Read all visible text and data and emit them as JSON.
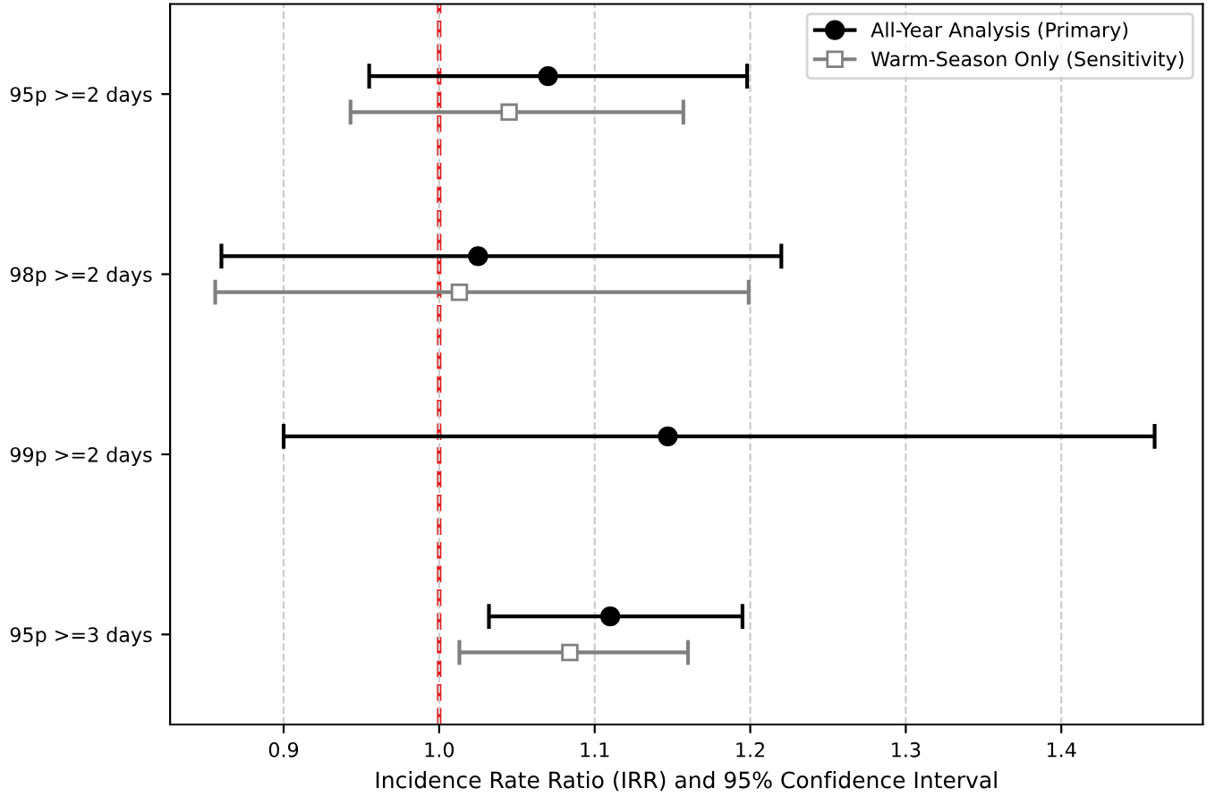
{
  "chart_data": {
    "type": "scatter",
    "orientation": "horizontal",
    "xlabel": "Incidence Rate Ratio (IRR) and 95% Confidence Interval",
    "categories": [
      "95p >=2 days",
      "98p >=2 days",
      "99p >=2 days",
      "95p >=3 days"
    ],
    "series": [
      {
        "name": "All-Year Analysis (Primary)",
        "color": "#000000",
        "marker": "circle",
        "values": [
          1.07,
          1.025,
          1.147,
          1.11
        ],
        "errors": [
          [
            0.955,
            1.198
          ],
          [
            0.86,
            1.22
          ],
          [
            0.9,
            1.46
          ],
          [
            1.032,
            1.195
          ]
        ]
      },
      {
        "name": "Warm-Season Only (Sensitivity)",
        "color": "#808080",
        "marker": "square",
        "values": [
          1.045,
          1.013,
          null,
          1.084
        ],
        "errors": [
          [
            0.943,
            1.157
          ],
          [
            0.856,
            1.199
          ],
          null,
          [
            1.013,
            1.16
          ]
        ]
      }
    ],
    "xlim": [
      0.827,
      1.491
    ],
    "xticks": [
      {
        "value": 0.9,
        "label": "0.9"
      },
      {
        "value": 1.0,
        "label": "1.0"
      },
      {
        "value": 1.1,
        "label": "1.1"
      },
      {
        "value": 1.2,
        "label": "1.2"
      },
      {
        "value": 1.3,
        "label": "1.3"
      },
      {
        "value": 1.4,
        "label": "1.4"
      }
    ],
    "ref_lines": [
      {
        "axis": "x",
        "value": 1.0,
        "color": "#e41a1c",
        "line_style": "dashed"
      }
    ],
    "grid": "x",
    "legend": "top right"
  }
}
